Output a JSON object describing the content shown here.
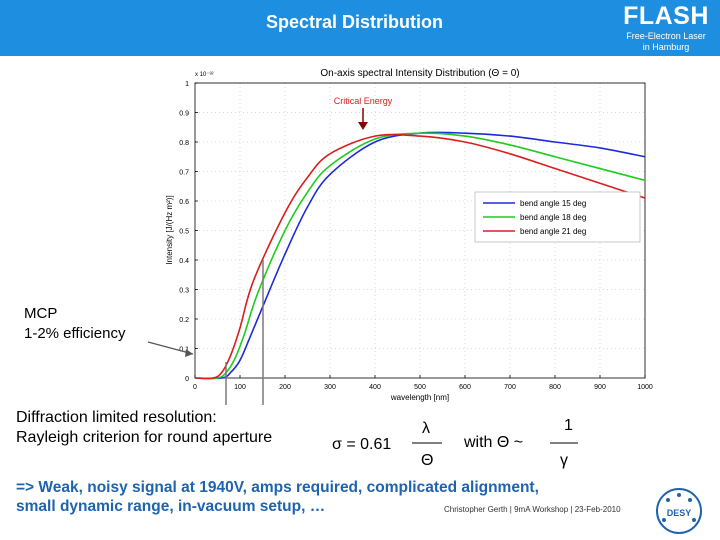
{
  "header": {
    "title": "Spectral Distribution",
    "brand": "FLASH",
    "brand_sub_1": "Free-Electron Laser",
    "brand_sub_2": "in Hamburg"
  },
  "colors": {
    "header_bg": "#1e8fe0",
    "conclusion": "#1e63b0",
    "series": [
      "#1f2bd8",
      "#1fcc1f",
      "#d81f1f"
    ]
  },
  "chart_data": {
    "type": "line",
    "title": "On-axis spectral Intensity Distribution (Θ = 0)",
    "xlabel": "wavelength [nm]",
    "ylabel": "Intensity [J/(Hz m²)]",
    "y_exponent_label": "x 10⁻³²",
    "xlim": [
      0,
      1000
    ],
    "ylim": [
      0,
      1
    ],
    "xticks": [
      0,
      100,
      200,
      300,
      400,
      500,
      600,
      700,
      800,
      900,
      1000
    ],
    "yticks": [
      0,
      0.1,
      0.2,
      0.3,
      0.4,
      0.5,
      0.6,
      0.7,
      0.8,
      0.9,
      1
    ],
    "legend_position": "right",
    "annotation": "Critical Energy",
    "series": [
      {
        "name": "bend angle 15 deg",
        "color": "#1f2bd8",
        "x": [
          0,
          60,
          80,
          100,
          120,
          150,
          200,
          250,
          300,
          400,
          500,
          600,
          700,
          800,
          900,
          1000
        ],
        "y": [
          0,
          0.0,
          0.02,
          0.06,
          0.13,
          0.24,
          0.42,
          0.58,
          0.69,
          0.8,
          0.83,
          0.83,
          0.82,
          0.8,
          0.78,
          0.75
        ]
      },
      {
        "name": "bend angle 18 deg",
        "color": "#1fcc1f",
        "x": [
          0,
          50,
          70,
          90,
          110,
          140,
          200,
          250,
          300,
          400,
          500,
          600,
          700,
          800,
          900,
          1000
        ],
        "y": [
          0,
          0.0,
          0.02,
          0.07,
          0.15,
          0.29,
          0.5,
          0.63,
          0.72,
          0.81,
          0.83,
          0.82,
          0.79,
          0.75,
          0.71,
          0.67
        ]
      },
      {
        "name": "bend angle 21 deg",
        "color": "#d81f1f",
        "x": [
          0,
          40,
          60,
          80,
          100,
          130,
          200,
          250,
          300,
          400,
          500,
          600,
          700,
          800,
          900,
          1000
        ],
        "y": [
          0,
          0.0,
          0.02,
          0.08,
          0.17,
          0.33,
          0.56,
          0.68,
          0.76,
          0.82,
          0.82,
          0.8,
          0.76,
          0.71,
          0.66,
          0.61
        ]
      }
    ]
  },
  "callouts": {
    "mcp_1": "MCP",
    "mcp_2": "1-2% efficiency",
    "diff_1": "Diffraction limited resolution:",
    "diff_2": "Rayleigh criterion for round aperture"
  },
  "formula": {
    "sigma": "σ  = 0.61",
    "lambda": "λ",
    "theta": "Θ",
    "with": "with Θ  ~",
    "one": "1",
    "gamma": "γ"
  },
  "conclusion": {
    "line1": "=> Weak, noisy signal at 1940V, amps required, complicated alignment,",
    "line2": "small dynamic range, in-vacuum setup, …"
  },
  "footer": {
    "note": "Christopher Gerth  | 9mA Workshop |  23-Feb-2010",
    "logo": "DESY"
  }
}
